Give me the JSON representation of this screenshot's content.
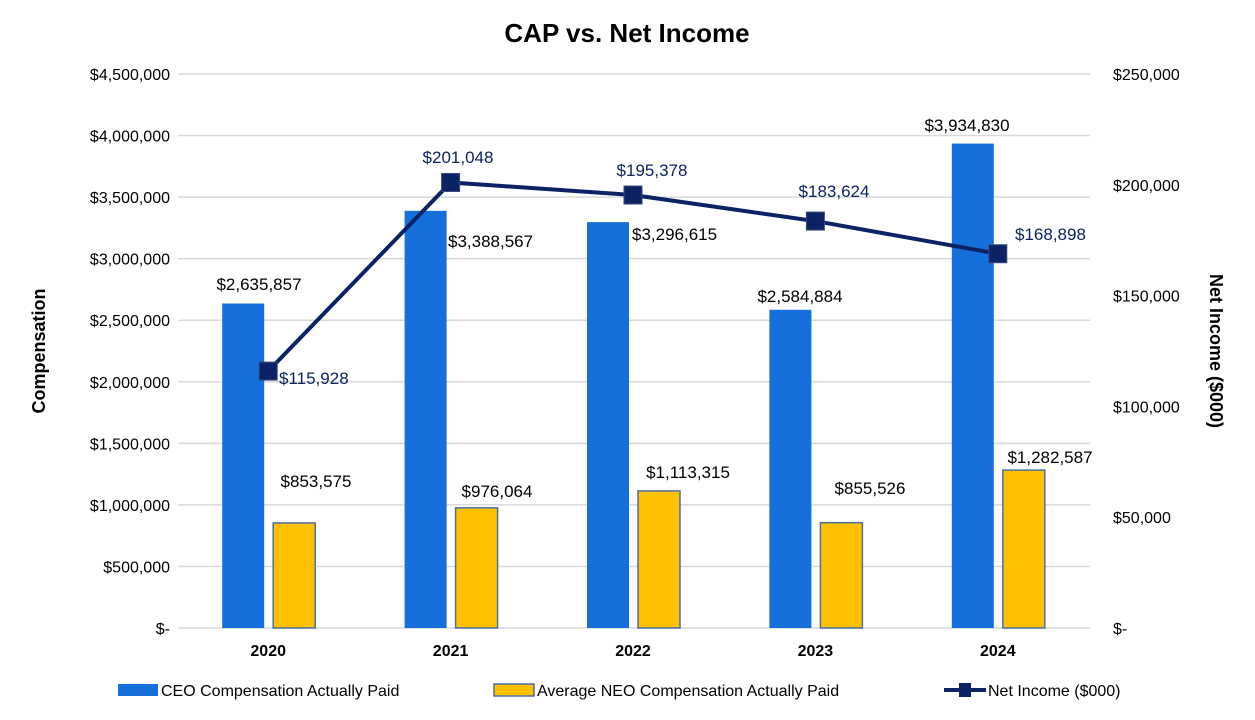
{
  "chart_data": {
    "type": "bar",
    "title": "CAP vs. Net Income",
    "categories": [
      "2020",
      "2021",
      "2022",
      "2023",
      "2024"
    ],
    "series": [
      {
        "name": "CEO Compensation Actually Paid",
        "type": "bar",
        "axis": "left",
        "color": "#1570DB",
        "values": [
          2635857,
          3388567,
          3296615,
          2584884,
          3934830
        ],
        "labels": [
          "$2,635,857",
          "$3,388,567",
          "$3,296,615",
          "$2,584,884",
          "$3,934,830"
        ]
      },
      {
        "name": "Average NEO Compensation Actually Paid",
        "type": "bar",
        "axis": "left",
        "color": "#FFC000",
        "border": "#4A6FA5",
        "values": [
          853575,
          976064,
          1113315,
          855526,
          1282587
        ],
        "labels": [
          "$853,575",
          "$976,064",
          "$1,113,315",
          "$855,526",
          "$1,282,587"
        ]
      },
      {
        "name": "Net Income ($000)",
        "type": "line",
        "axis": "right",
        "color": "#0B2265",
        "values": [
          115928,
          201048,
          195378,
          183624,
          168898
        ],
        "labels": [
          "$115,928",
          "$201,048",
          "$195,378",
          "$183,624",
          "$168,898"
        ]
      }
    ],
    "ylabel": "Compensation",
    "y2label": "Net Income ($000)",
    "ylim": [
      0,
      4500000
    ],
    "y2lim": [
      0,
      250000
    ],
    "yticks": [
      "$-",
      "$500,000",
      "$1,000,000",
      "$1,500,000",
      "$2,000,000",
      "$2,500,000",
      "$3,000,000",
      "$3,500,000",
      "$4,000,000",
      "$4,500,000"
    ],
    "y2ticks": [
      "$-",
      "$50,000",
      "$100,000",
      "$150,000",
      "$200,000",
      "$250,000"
    ],
    "grid": true,
    "legend": "bottom"
  }
}
